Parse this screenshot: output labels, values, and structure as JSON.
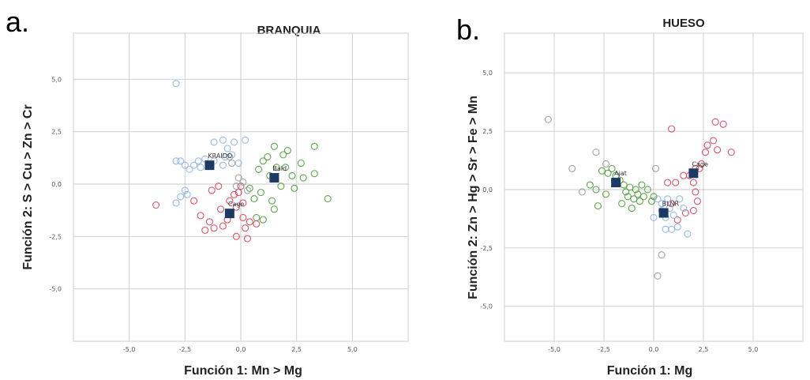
{
  "figure": {
    "panel_a_letter": "a.",
    "panel_b_letter": "b."
  },
  "colors": {
    "group_red": "#d0445a",
    "group_green": "#4f9a3c",
    "group_blue": "#8db2e6",
    "group_gray": "#9a9a9a",
    "centroid": "#1c3a63",
    "grid": "#d0d0d0"
  },
  "chart_data": [
    {
      "type": "scatter",
      "title": "BRANQUIA",
      "xlabel": "Función 1: Mn > Mg",
      "ylabel": "Función 2: S > Cu > Zn > Cr",
      "xlim": [
        -7.5,
        7.5
      ],
      "ylim": [
        -7.5,
        7.2
      ],
      "xticks": [
        -5.0,
        -2.5,
        0.0,
        2.5,
        5.0
      ],
      "xtick_labels": [
        "-5,0",
        "-2,5",
        "0,0",
        "2,5",
        "5,0"
      ],
      "yticks": [
        -5.0,
        -2.5,
        0.0,
        2.5,
        5.0
      ],
      "ytick_labels": [
        "-5,0",
        "-2,5",
        "0,0",
        "2,5",
        "5,0"
      ],
      "grid": true,
      "series": [
        {
          "color_key": "group_blue",
          "points": [
            [
              -2.9,
              4.8
            ],
            [
              -2.9,
              1.1
            ],
            [
              -2.7,
              1.1
            ],
            [
              -2.5,
              0.9
            ],
            [
              -2.3,
              0.7
            ],
            [
              -2.1,
              0.9
            ],
            [
              -1.9,
              1.1
            ],
            [
              -1.8,
              0.8
            ],
            [
              -1.6,
              1.2
            ],
            [
              -1.2,
              2.0
            ],
            [
              -0.8,
              2.1
            ],
            [
              -0.6,
              1.7
            ],
            [
              -0.4,
              1.4
            ],
            [
              -0.3,
              2.0
            ],
            [
              -0.1,
              1.0
            ],
            [
              0.2,
              2.1
            ],
            [
              -2.5,
              -0.3
            ],
            [
              -2.7,
              -0.6
            ],
            [
              -2.9,
              -0.9
            ],
            [
              -2.4,
              -0.5
            ],
            [
              -1.2,
              1.1
            ],
            [
              -0.8,
              0.9
            ],
            [
              -0.7,
              1.3
            ]
          ]
        },
        {
          "color_key": "group_green",
          "points": [
            [
              0.8,
              0.7
            ],
            [
              1.0,
              1.1
            ],
            [
              1.2,
              1.3
            ],
            [
              1.3,
              0.4
            ],
            [
              1.5,
              1.8
            ],
            [
              1.6,
              0.8
            ],
            [
              1.8,
              -0.1
            ],
            [
              1.9,
              1.4
            ],
            [
              2.0,
              0.8
            ],
            [
              2.1,
              1.6
            ],
            [
              2.3,
              0.4
            ],
            [
              2.4,
              -0.2
            ],
            [
              2.7,
              1.0
            ],
            [
              2.8,
              0.3
            ],
            [
              3.3,
              1.8
            ],
            [
              3.3,
              0.5
            ],
            [
              3.9,
              -0.7
            ],
            [
              0.9,
              -0.4
            ],
            [
              1.4,
              -0.8
            ],
            [
              1.0,
              -1.7
            ],
            [
              1.5,
              -1.2
            ],
            [
              0.6,
              -0.7
            ],
            [
              0.7,
              -1.6
            ],
            [
              0.4,
              -0.2
            ]
          ]
        },
        {
          "color_key": "group_red",
          "points": [
            [
              -3.8,
              -1.0
            ],
            [
              -2.1,
              -0.8
            ],
            [
              -1.8,
              -1.5
            ],
            [
              -1.6,
              -2.2
            ],
            [
              -1.4,
              -1.8
            ],
            [
              -1.3,
              -0.3
            ],
            [
              -1.2,
              -2.1
            ],
            [
              -1.0,
              -0.1
            ],
            [
              -0.9,
              -1.2
            ],
            [
              -0.8,
              -2.0
            ],
            [
              -0.6,
              -1.7
            ],
            [
              -0.5,
              -0.8
            ],
            [
              -0.3,
              -0.5
            ],
            [
              -0.2,
              -1.1
            ],
            [
              -0.1,
              -0.4
            ],
            [
              0.0,
              -0.1
            ],
            [
              0.1,
              -1.6
            ],
            [
              0.2,
              -2.1
            ],
            [
              0.3,
              -2.6
            ],
            [
              0.4,
              -1.8
            ],
            [
              0.7,
              -1.9
            ],
            [
              -0.2,
              -2.5
            ],
            [
              0.1,
              -0.9
            ]
          ]
        },
        {
          "color_key": "group_gray",
          "points": [
            [
              0.1,
              0.1
            ],
            [
              -0.2,
              -0.1
            ],
            [
              -0.5,
              1.3
            ],
            [
              -0.4,
              1.0
            ],
            [
              0.3,
              -0.3
            ],
            [
              -0.1,
              0.3
            ]
          ]
        }
      ],
      "centroids": [
        {
          "label": "KRAIDO",
          "x": -1.4,
          "y": 0.9
        },
        {
          "label": "Bald",
          "x": 1.5,
          "y": 0.3
        },
        {
          "label": "Cage",
          "x": -0.5,
          "y": -1.4
        }
      ]
    },
    {
      "type": "scatter",
      "title": "HUESO",
      "xlabel": "Función 1: Mg",
      "ylabel": "Función 2: Zn > Hg > Sr > Fe > Mn",
      "xlim": [
        -7.5,
        7.5
      ],
      "ylim": [
        -6.5,
        6.7
      ],
      "xticks": [
        -5.0,
        -2.5,
        0.0,
        2.5,
        5.0
      ],
      "xtick_labels": [
        "-5,0",
        "-2,5",
        "0,0",
        "2,5",
        "5,0"
      ],
      "yticks": [
        -5.0,
        -2.5,
        0.0,
        2.5,
        5.0
      ],
      "ytick_labels": [
        "-5,0",
        "-2,5",
        "0,0",
        "2,5",
        "5,0"
      ],
      "grid": true,
      "series": [
        {
          "color_key": "group_red",
          "points": [
            [
              0.9,
              2.6
            ],
            [
              2.6,
              1.6
            ],
            [
              2.7,
              1.9
            ],
            [
              3.0,
              2.1
            ],
            [
              3.1,
              2.9
            ],
            [
              3.2,
              1.7
            ],
            [
              3.5,
              2.8
            ],
            [
              3.9,
              1.6
            ],
            [
              2.4,
              1.1
            ],
            [
              2.1,
              0.9
            ],
            [
              2.0,
              0.3
            ],
            [
              2.1,
              -0.1
            ],
            [
              2.2,
              -0.5
            ],
            [
              2.0,
              -0.9
            ],
            [
              1.6,
              -1.0
            ],
            [
              1.2,
              -1.3
            ],
            [
              1.5,
              0.6
            ],
            [
              1.1,
              0.3
            ],
            [
              0.7,
              0.3
            ],
            [
              1.8,
              0.6
            ],
            [
              2.3,
              0.9
            ],
            [
              0.9,
              -0.6
            ]
          ]
        },
        {
          "color_key": "group_green",
          "points": [
            [
              -2.6,
              0.8
            ],
            [
              -2.3,
              0.7
            ],
            [
              -2.1,
              0.9
            ],
            [
              -1.9,
              0.6
            ],
            [
              -1.7,
              0.4
            ],
            [
              -1.5,
              0.2
            ],
            [
              -1.4,
              -0.1
            ],
            [
              -1.3,
              -0.3
            ],
            [
              -1.2,
              0.1
            ],
            [
              -1.0,
              -0.4
            ],
            [
              -0.8,
              -0.2
            ],
            [
              -0.7,
              -0.5
            ],
            [
              -0.6,
              0.2
            ],
            [
              -0.5,
              -0.3
            ],
            [
              -0.3,
              0.0
            ],
            [
              -0.1,
              -0.5
            ],
            [
              0.0,
              -0.3
            ],
            [
              -2.9,
              0.0
            ],
            [
              -3.2,
              0.2
            ],
            [
              -2.8,
              -0.7
            ],
            [
              -1.6,
              -0.6
            ],
            [
              -1.1,
              -0.8
            ],
            [
              -0.9,
              0.0
            ],
            [
              -2.4,
              -0.2
            ]
          ]
        },
        {
          "color_key": "group_blue",
          "points": [
            [
              0.2,
              -0.4
            ],
            [
              0.4,
              -0.9
            ],
            [
              0.6,
              -1.2
            ],
            [
              0.8,
              -0.8
            ],
            [
              1.0,
              -1.1
            ],
            [
              1.2,
              -1.6
            ],
            [
              0.6,
              -1.7
            ],
            [
              0.9,
              -1.7
            ],
            [
              1.3,
              -0.4
            ],
            [
              1.5,
              -0.8
            ],
            [
              1.7,
              -1.9
            ],
            [
              0.0,
              -1.2
            ],
            [
              0.4,
              -0.6
            ],
            [
              0.7,
              -0.4
            ]
          ]
        },
        {
          "color_key": "group_gray",
          "points": [
            [
              -5.3,
              3.0
            ],
            [
              -3.6,
              -0.1
            ],
            [
              -4.1,
              0.9
            ],
            [
              -2.9,
              1.6
            ],
            [
              -2.4,
              1.1
            ],
            [
              0.2,
              -3.7
            ],
            [
              0.4,
              -2.8
            ],
            [
              0.1,
              0.9
            ]
          ]
        }
      ],
      "centroids": [
        {
          "label": "Ajat",
          "x": -1.9,
          "y": 0.3
        },
        {
          "label": "Cage",
          "x": 2.0,
          "y": 0.7
        },
        {
          "label": "BLNR",
          "x": 0.5,
          "y": -1.0
        }
      ]
    }
  ]
}
